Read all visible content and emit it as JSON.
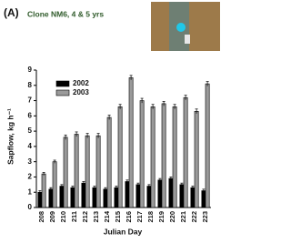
{
  "chart_data": {
    "type": "bar",
    "panel_label": "(A)",
    "title": "Clone NM6, 4 & 5 yrs",
    "x_label": "Julian Day",
    "y_label": "Sapflow, kg h⁻¹",
    "categories": [
      "208",
      "209",
      "210",
      "211",
      "212",
      "213",
      "214",
      "215",
      "216",
      "217",
      "218",
      "219",
      "220",
      "221",
      "222",
      "223"
    ],
    "series": [
      {
        "name": "2002",
        "color": "#000000",
        "values": [
          1.0,
          1.2,
          1.4,
          1.3,
          1.6,
          1.3,
          1.2,
          1.3,
          1.7,
          1.5,
          1.4,
          1.8,
          1.9,
          1.5,
          1.3,
          1.1
        ],
        "errors": [
          0.1,
          0.1,
          0.1,
          0.1,
          0.1,
          0.1,
          0.1,
          0.1,
          0.1,
          0.1,
          0.1,
          0.1,
          0.1,
          0.1,
          0.1,
          0.1
        ]
      },
      {
        "name": "2003",
        "color": "#9a9a9a",
        "values": [
          2.2,
          3.0,
          4.6,
          4.8,
          4.7,
          4.7,
          5.9,
          6.6,
          8.5,
          7.0,
          6.6,
          6.8,
          6.6,
          7.2,
          6.3,
          8.1
        ],
        "errors": [
          0.1,
          0.1,
          0.15,
          0.15,
          0.15,
          0.15,
          0.15,
          0.15,
          0.15,
          0.15,
          0.15,
          0.15,
          0.15,
          0.15,
          0.15,
          0.15
        ]
      }
    ],
    "ylim": [
      0,
      9
    ],
    "yticks": [
      0,
      1,
      2,
      3,
      4,
      5,
      6,
      7,
      8,
      9
    ],
    "grid": false,
    "legend": "upper-left"
  }
}
